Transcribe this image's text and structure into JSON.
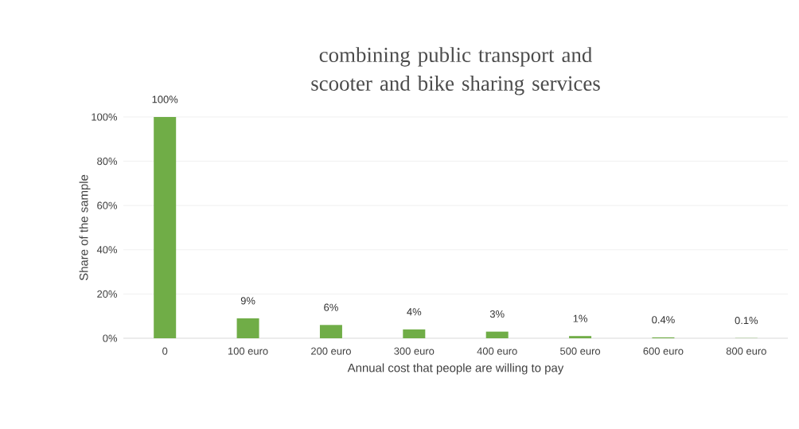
{
  "chart_data": {
    "type": "bar",
    "title": "combining public transport and scooter and bike sharing services",
    "xlabel": "Annual cost that people are willing to pay",
    "ylabel": "Share of the sample",
    "categories": [
      "0",
      "100 euro",
      "200 euro",
      "300 euro",
      "400 euro",
      "500 euro",
      "600 euro",
      "800 euro"
    ],
    "values": [
      100,
      9,
      6,
      4,
      3,
      1,
      0.4,
      0.1
    ],
    "value_labels": [
      "100%",
      "9%",
      "6%",
      "4%",
      "3%",
      "1%",
      "0.4%",
      "0.1%"
    ],
    "color": "#70ad47",
    "ylim": [
      0,
      100
    ],
    "yticks": [
      {
        "value": 0,
        "label": "0%"
      },
      {
        "value": 20,
        "label": "20%"
      },
      {
        "value": 40,
        "label": "40%"
      },
      {
        "value": 60,
        "label": "60%"
      },
      {
        "value": 80,
        "label": "80%"
      },
      {
        "value": 100,
        "label": "100%"
      }
    ],
    "grid": "y"
  }
}
